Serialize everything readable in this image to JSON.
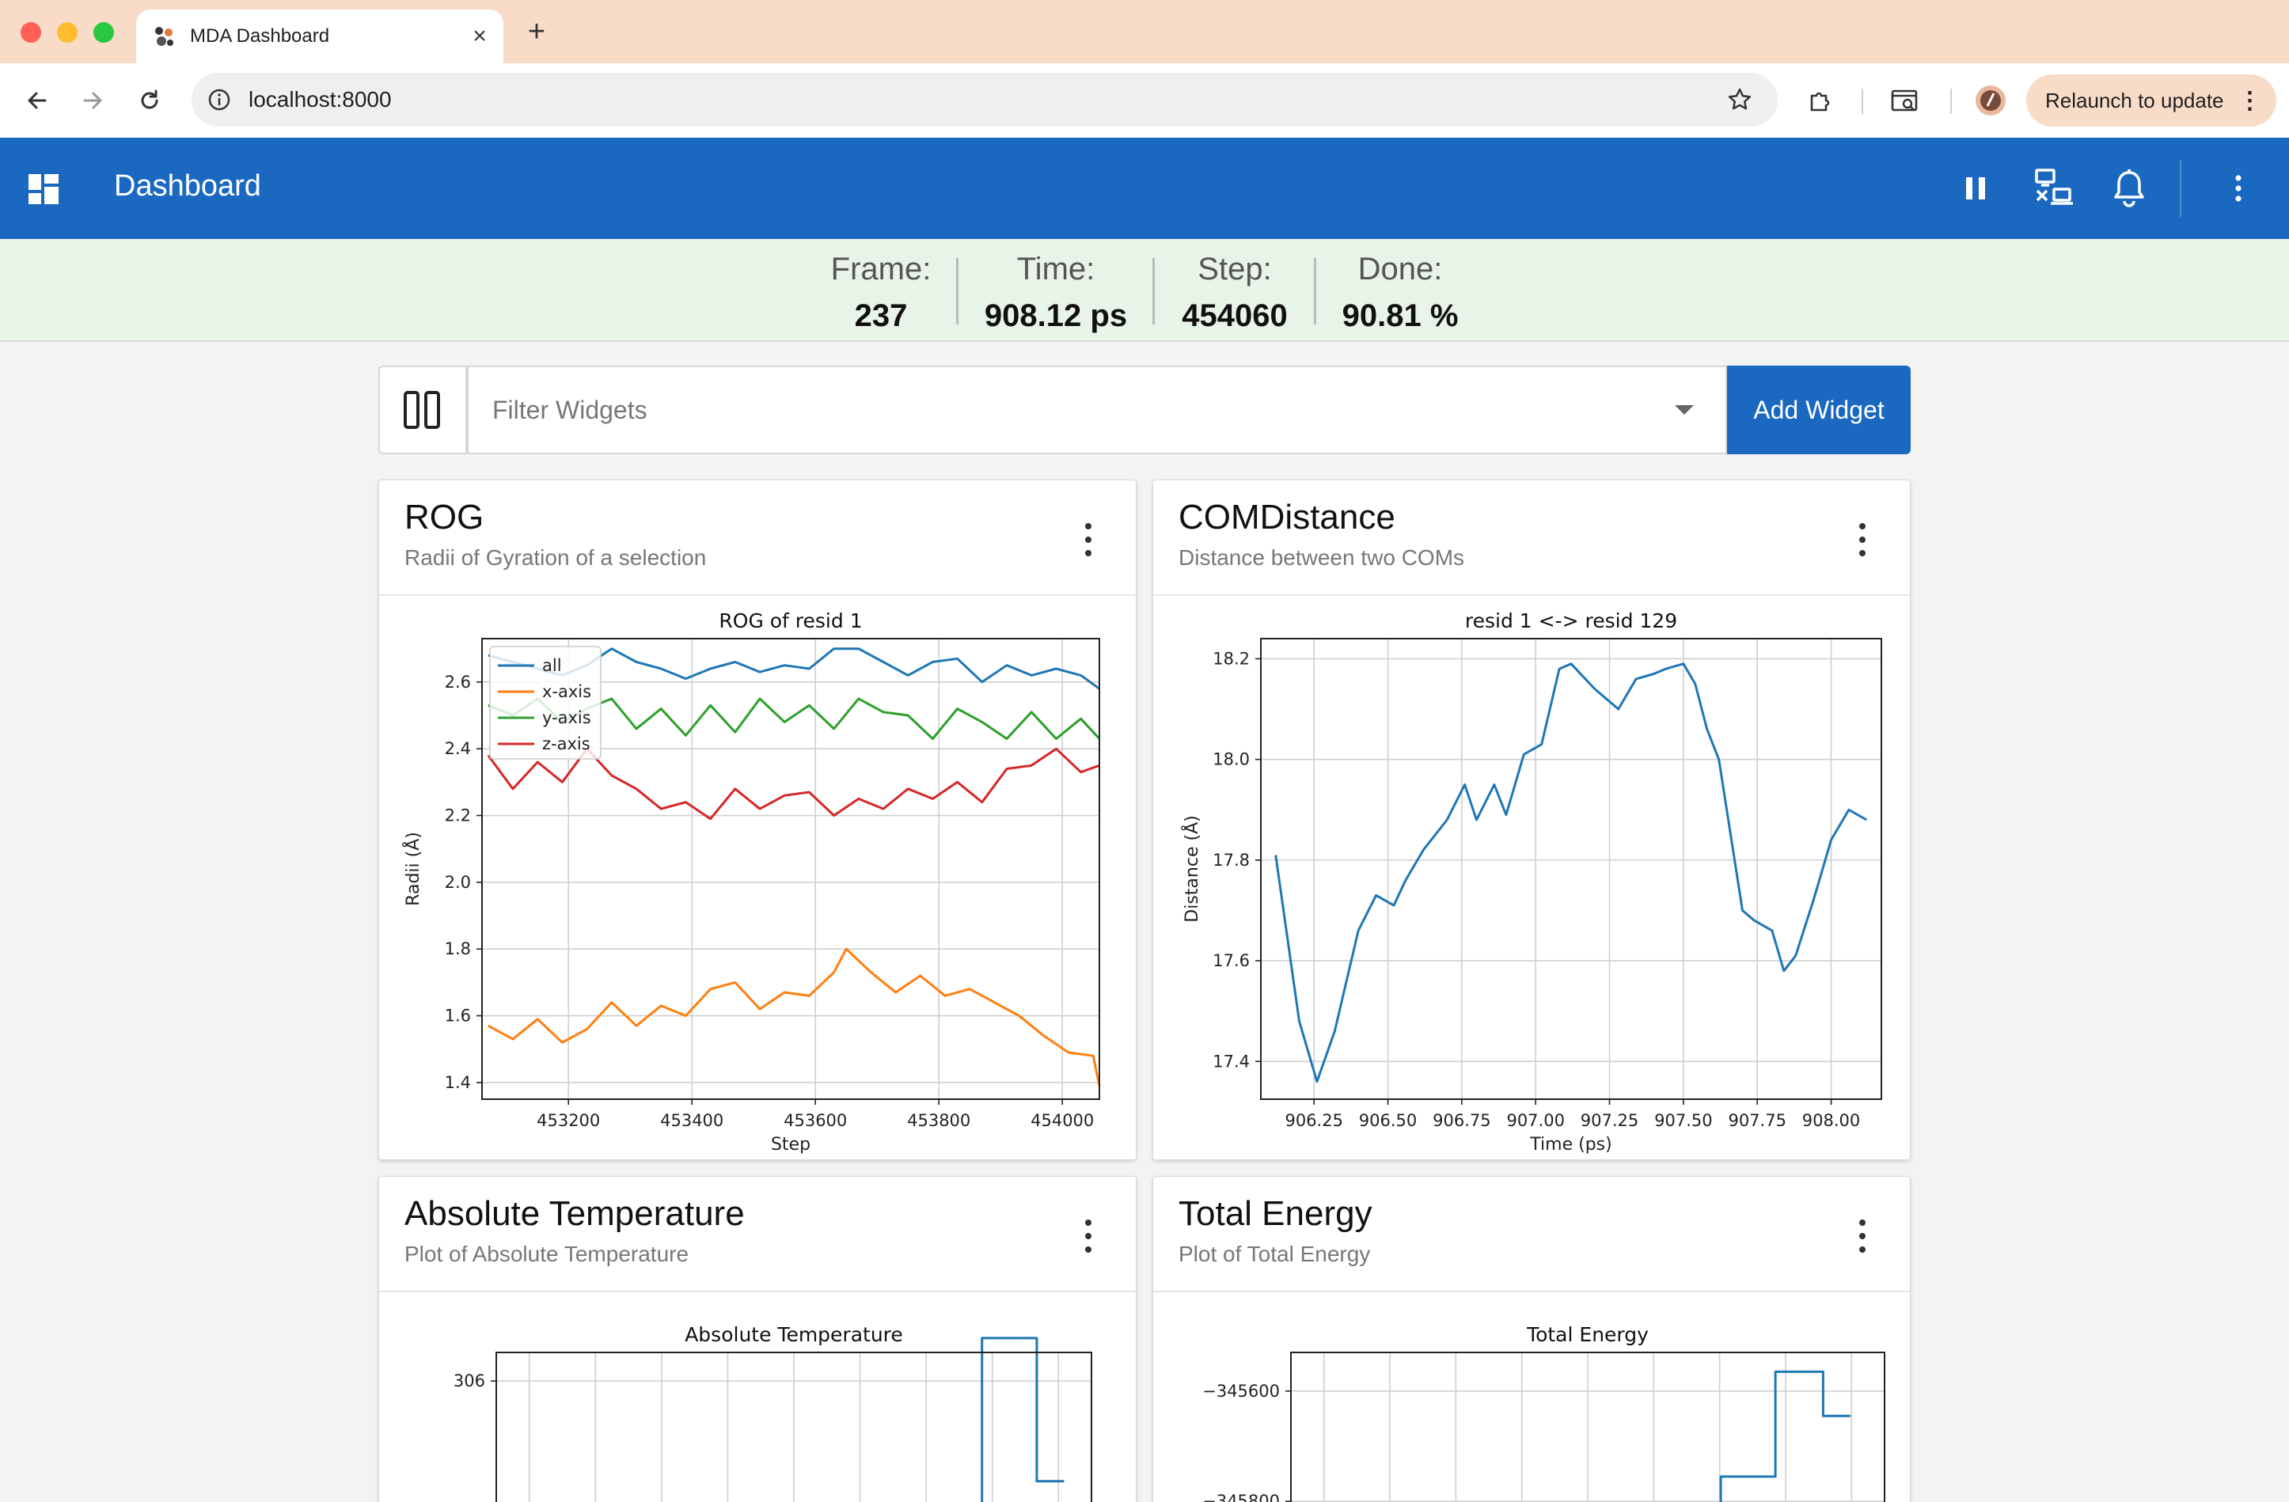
{
  "browser": {
    "tab_title": "MDA Dashboard",
    "url": "localhost:8000",
    "relaunch_label": "Relaunch to update"
  },
  "appbar": {
    "title": "Dashboard"
  },
  "status": {
    "frame_label": "Frame:",
    "frame_value": "237",
    "time_label": "Time:",
    "time_value": "908.12 ps",
    "step_label": "Step:",
    "step_value": "454060",
    "done_label": "Done:",
    "done_value": "90.81 %"
  },
  "filter": {
    "placeholder": "Filter Widgets",
    "add_label": "Add Widget"
  },
  "widgets": [
    {
      "title": "ROG",
      "subtitle": "Radii of Gyration of a selection"
    },
    {
      "title": "COMDistance",
      "subtitle": "Distance between two COMs"
    },
    {
      "title": "Absolute Temperature",
      "subtitle": "Plot of Absolute Temperature"
    },
    {
      "title": "Total Energy",
      "subtitle": "Plot of Total Energy"
    }
  ],
  "colors": {
    "appbar": "#1a68c0",
    "status_bg": "#e8f4e8",
    "series": [
      "#1f77b4",
      "#ff7f0e",
      "#2ca02c",
      "#d62728"
    ]
  },
  "chart_data": [
    {
      "type": "line",
      "title": "ROG of resid 1",
      "xlabel": "Step",
      "ylabel": "Radii (Å)",
      "xlim": [
        453060,
        454060
      ],
      "ylim": [
        1.35,
        2.73
      ],
      "xticks": [
        453200,
        453400,
        453600,
        453800,
        454000
      ],
      "yticks": [
        1.4,
        1.6,
        1.8,
        2.0,
        2.2,
        2.4,
        2.6
      ],
      "xtick_labels": [
        "453200",
        "453400",
        "453600",
        "453800",
        "454000"
      ],
      "ytick_labels": [
        "1.4",
        "1.6",
        "1.8",
        "2.0",
        "2.2",
        "2.4",
        "2.6"
      ],
      "grid": true,
      "legend": "upper-left",
      "series": [
        {
          "name": "all",
          "color": "#1f77b4",
          "x": [
            453070,
            453110,
            453150,
            453190,
            453230,
            453270,
            453310,
            453350,
            453390,
            453430,
            453470,
            453510,
            453550,
            453590,
            453630,
            453670,
            453710,
            453750,
            453790,
            453830,
            453870,
            453910,
            453950,
            453990,
            454030,
            454060
          ],
          "y": [
            2.68,
            2.66,
            2.64,
            2.62,
            2.65,
            2.7,
            2.66,
            2.64,
            2.61,
            2.64,
            2.66,
            2.63,
            2.65,
            2.64,
            2.7,
            2.7,
            2.66,
            2.62,
            2.66,
            2.67,
            2.6,
            2.65,
            2.62,
            2.64,
            2.62,
            2.58
          ]
        },
        {
          "name": "x-axis",
          "color": "#ff7f0e",
          "x": [
            453070,
            453110,
            453150,
            453190,
            453230,
            453270,
            453310,
            453350,
            453390,
            453430,
            453470,
            453510,
            453550,
            453590,
            453630,
            453650,
            453690,
            453730,
            453770,
            453810,
            453850,
            453890,
            453930,
            453970,
            454010,
            454050,
            454060
          ],
          "y": [
            1.57,
            1.53,
            1.59,
            1.52,
            1.56,
            1.64,
            1.57,
            1.63,
            1.6,
            1.68,
            1.7,
            1.62,
            1.67,
            1.66,
            1.73,
            1.8,
            1.73,
            1.67,
            1.72,
            1.66,
            1.68,
            1.64,
            1.6,
            1.54,
            1.49,
            1.48,
            1.39
          ]
        },
        {
          "name": "y-axis",
          "color": "#2ca02c",
          "x": [
            453070,
            453110,
            453150,
            453190,
            453230,
            453270,
            453310,
            453350,
            453390,
            453430,
            453470,
            453510,
            453550,
            453590,
            453630,
            453670,
            453710,
            453750,
            453790,
            453830,
            453870,
            453910,
            453950,
            453990,
            454030,
            454060
          ],
          "y": [
            2.53,
            2.5,
            2.55,
            2.48,
            2.52,
            2.55,
            2.46,
            2.52,
            2.44,
            2.53,
            2.45,
            2.55,
            2.48,
            2.53,
            2.46,
            2.55,
            2.51,
            2.5,
            2.43,
            2.52,
            2.48,
            2.43,
            2.51,
            2.43,
            2.49,
            2.43
          ]
        },
        {
          "name": "z-axis",
          "color": "#d62728",
          "x": [
            453070,
            453110,
            453150,
            453190,
            453230,
            453270,
            453310,
            453350,
            453390,
            453430,
            453470,
            453510,
            453550,
            453590,
            453630,
            453670,
            453710,
            453750,
            453790,
            453830,
            453870,
            453910,
            453950,
            453990,
            454030,
            454060
          ],
          "y": [
            2.38,
            2.28,
            2.36,
            2.3,
            2.4,
            2.32,
            2.28,
            2.22,
            2.24,
            2.19,
            2.28,
            2.22,
            2.26,
            2.27,
            2.2,
            2.25,
            2.22,
            2.28,
            2.25,
            2.3,
            2.24,
            2.34,
            2.35,
            2.4,
            2.33,
            2.35
          ]
        }
      ]
    },
    {
      "type": "line",
      "title": "resid 1 <-> resid 129",
      "xlabel": "Time (ps)",
      "ylabel": "Distance (Å)",
      "xlim": [
        906.07,
        908.17
      ],
      "ylim": [
        17.325,
        18.24
      ],
      "xticks": [
        906.25,
        906.5,
        906.75,
        907.0,
        907.25,
        907.5,
        907.75,
        908.0
      ],
      "yticks": [
        17.4,
        17.6,
        17.8,
        18.0,
        18.2
      ],
      "xtick_labels": [
        "906.25",
        "906.50",
        "906.75",
        "907.00",
        "907.25",
        "907.50",
        "907.75",
        "908.00"
      ],
      "ytick_labels": [
        "17.4",
        "17.6",
        "17.8",
        "18.0",
        "18.2"
      ],
      "grid": true,
      "series": [
        {
          "color": "#1f77b4",
          "x": [
            906.12,
            906.2,
            906.26,
            906.32,
            906.4,
            906.46,
            906.52,
            906.56,
            906.62,
            906.7,
            906.76,
            906.8,
            906.86,
            906.9,
            906.96,
            907.02,
            907.08,
            907.12,
            907.2,
            907.24,
            907.28,
            907.34,
            907.4,
            907.44,
            907.5,
            907.54,
            907.58,
            907.62,
            907.7,
            907.74,
            907.8,
            907.84,
            907.88,
            907.94,
            908.0,
            908.06,
            908.12
          ],
          "y": [
            17.81,
            17.48,
            17.36,
            17.46,
            17.66,
            17.73,
            17.71,
            17.76,
            17.82,
            17.88,
            17.95,
            17.88,
            17.95,
            17.89,
            18.01,
            18.03,
            18.18,
            18.19,
            18.14,
            18.12,
            18.1,
            18.16,
            18.17,
            18.18,
            18.19,
            18.15,
            18.06,
            18.0,
            17.7,
            17.68,
            17.66,
            17.58,
            17.61,
            17.72,
            17.84,
            17.9,
            17.88
          ]
        }
      ]
    },
    {
      "type": "line",
      "title": "Absolute Temperature",
      "xlabel": "",
      "ylabel": "",
      "xlim": [
        0,
        8.7
      ],
      "ylim": [
        304.85,
        306.2
      ],
      "yticks": [
        305,
        306
      ],
      "ytick_labels": [
        "305",
        "306"
      ],
      "grid": true,
      "series": [
        {
          "color": "#1f77b4",
          "x": [
            5.5,
            5.5,
            6.2,
            6.2,
            7.1,
            7.1,
            7.9,
            7.9,
            8.3
          ],
          "y": [
            304.7,
            304.9,
            304.9,
            304.7,
            304.7,
            306.3,
            306.3,
            305.3,
            305.3
          ]
        }
      ]
    },
    {
      "type": "line",
      "title": "Total Energy",
      "xlabel": "",
      "ylabel": "",
      "xlim": [
        0,
        8.7
      ],
      "ylim": [
        -345880,
        -345530
      ],
      "yticks": [
        -345600,
        -345800
      ],
      "ytick_labels": [
        "−345600",
        "−345800"
      ],
      "grid": true,
      "series": [
        {
          "color": "#1f77b4",
          "x": [
            6.3,
            6.3,
            7.1,
            7.1,
            7.8,
            7.8,
            8.2
          ],
          "y": [
            -345900,
            -345755,
            -345755,
            -345565,
            -345565,
            -345645,
            -345645
          ]
        }
      ]
    }
  ]
}
